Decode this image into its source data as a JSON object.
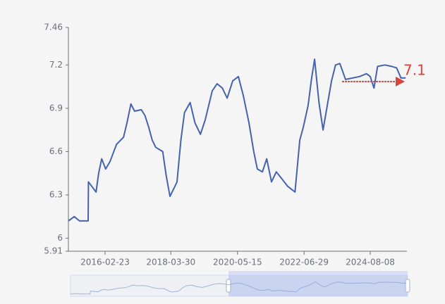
{
  "chart_data": {
    "type": "line",
    "x": [
      "2014-12-23",
      "2015-03-01",
      "2015-05-01",
      "2015-08-10",
      "2015-08-13",
      "2015-11-10",
      "2015-12-10",
      "2016-01-15",
      "2016-03-01",
      "2016-04-20",
      "2016-07-05",
      "2016-09-25",
      "2016-11-05",
      "2016-12-20",
      "2017-02-01",
      "2017-04-20",
      "2017-06-01",
      "2017-07-15",
      "2017-08-25",
      "2017-10-05",
      "2017-12-25",
      "2018-02-05",
      "2018-03-20",
      "2018-05-01",
      "2018-06-10",
      "2018-07-25",
      "2018-09-05",
      "2018-11-10",
      "2019-01-05",
      "2019-03-10",
      "2019-05-05",
      "2019-07-25",
      "2019-09-20",
      "2019-11-20",
      "2020-01-15",
      "2020-03-20",
      "2020-05-25",
      "2020-07-20",
      "2020-09-25",
      "2020-11-20",
      "2021-01-01",
      "2021-03-01",
      "2021-04-20",
      "2021-06-15",
      "2021-08-10",
      "2021-10-15",
      "2021-12-20",
      "2022-03-15",
      "2022-05-10",
      "2022-06-20",
      "2022-08-15",
      "2022-09-25",
      "2022-10-30",
      "2022-12-20",
      "2023-02-05",
      "2023-04-01",
      "2023-05-15",
      "2023-07-01",
      "2023-08-20",
      "2023-10-25",
      "2024-01-15",
      "2024-04-05",
      "2024-06-25",
      "2024-08-08",
      "2024-09-20",
      "2024-11-01",
      "2025-01-25",
      "2025-04-15",
      "2025-06-10",
      "2025-08-01",
      "2025-09-25"
    ],
    "series": [
      {
        "color": "#4462ad",
        "values": [
          6.12,
          6.15,
          6.12,
          6.12,
          6.39,
          6.32,
          6.45,
          6.55,
          6.48,
          6.53,
          6.65,
          6.7,
          6.8,
          6.93,
          6.88,
          6.89,
          6.85,
          6.77,
          6.68,
          6.63,
          6.6,
          6.43,
          6.29,
          6.34,
          6.39,
          6.68,
          6.87,
          6.94,
          6.8,
          6.72,
          6.82,
          7.02,
          7.07,
          7.04,
          6.97,
          7.09,
          7.12,
          6.99,
          6.8,
          6.6,
          6.48,
          6.46,
          6.55,
          6.39,
          6.46,
          6.41,
          6.36,
          6.32,
          6.68,
          6.77,
          6.92,
          7.11,
          7.24,
          6.94,
          6.75,
          6.94,
          7.09,
          7.2,
          7.21,
          7.1,
          7.11,
          7.12,
          7.14,
          7.12,
          7.04,
          7.19,
          7.2,
          7.19,
          7.18,
          7.11,
          7.11
        ]
      }
    ],
    "xlim": [
      "2014-12-23",
      "2025-10-09"
    ],
    "xticks": [
      "2016-02-23",
      "2018-03-30",
      "2020-05-15",
      "2022-06-29",
      "2024-08-08"
    ],
    "ylim": [
      5.91,
      7.46
    ],
    "yticks": [
      5.91,
      6,
      6.3,
      6.6,
      6.9,
      7.2,
      7.46
    ],
    "annotation": {
      "label": "7.1",
      "value": 7.1,
      "color": "#d9453a"
    }
  }
}
